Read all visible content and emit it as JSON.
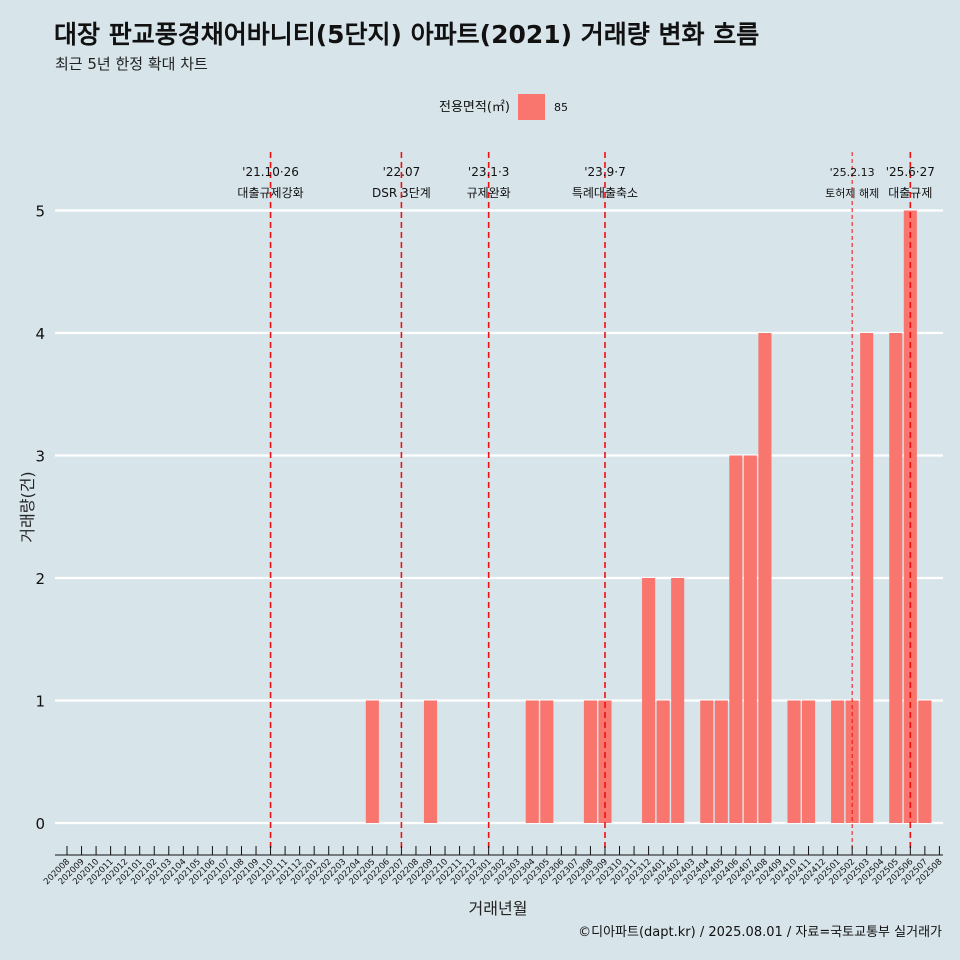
{
  "header": {
    "title": "대장 판교풍경채어바니티(5단지) 아파트(2021) 거래량 변화 흐름",
    "subtitle": "최근 5년 한정 확대 차트"
  },
  "legend": {
    "title": "전용면적(㎡)",
    "items": [
      {
        "label": "85",
        "color": "#f8766d"
      }
    ]
  },
  "caption": "©디아파트(dapt.kr) / 2025.08.01 / 자료=국토교통부 실거래가",
  "chart_data": {
    "type": "bar",
    "xlabel": "거래년월",
    "ylabel": "거래량(건)",
    "ylim": [
      0,
      5
    ],
    "y_ticks": [
      0,
      1,
      2,
      3,
      4,
      5
    ],
    "grid": true,
    "legend_position": "top",
    "bar_color": "#f8766d",
    "categories": [
      "202008",
      "202009",
      "202010",
      "202011",
      "202012",
      "202101",
      "202102",
      "202103",
      "202104",
      "202105",
      "202106",
      "202107",
      "202108",
      "202109",
      "202110",
      "202111",
      "202112",
      "202201",
      "202202",
      "202203",
      "202204",
      "202205",
      "202206",
      "202207",
      "202208",
      "202209",
      "202210",
      "202211",
      "202212",
      "202301",
      "202302",
      "202303",
      "202304",
      "202305",
      "202306",
      "202307",
      "202308",
      "202309",
      "202310",
      "202311",
      "202312",
      "202401",
      "202402",
      "202403",
      "202404",
      "202405",
      "202406",
      "202407",
      "202408",
      "202409",
      "202410",
      "202411",
      "202412",
      "202501",
      "202502",
      "202503",
      "202504",
      "202505",
      "202506",
      "202507",
      "202508"
    ],
    "series": [
      {
        "name": "85",
        "values": [
          0,
          0,
          0,
          0,
          0,
          0,
          0,
          0,
          0,
          0,
          0,
          0,
          0,
          0,
          0,
          0,
          0,
          0,
          0,
          0,
          0,
          1,
          0,
          0,
          0,
          1,
          0,
          0,
          0,
          0,
          0,
          0,
          1,
          1,
          0,
          0,
          1,
          1,
          0,
          0,
          2,
          1,
          2,
          0,
          1,
          1,
          3,
          3,
          4,
          0,
          1,
          1,
          0,
          1,
          1,
          4,
          0,
          4,
          5,
          1,
          0
        ]
      }
    ],
    "annotations": [
      {
        "month": "202110",
        "date": "'21.10·26",
        "label": "대출규제강화",
        "style": "major"
      },
      {
        "month": "202207",
        "date": "'22.07",
        "label": "DSR 3단계",
        "style": "major"
      },
      {
        "month": "202301",
        "date": "'23.1·3",
        "label": "규제완화",
        "style": "major"
      },
      {
        "month": "202309",
        "date": "'23.9·7",
        "label": "특례대출축소",
        "style": "major"
      },
      {
        "month": "202502",
        "date": "'25.2.13",
        "label": "토허제 해제",
        "style": "minor"
      },
      {
        "month": "202506",
        "date": "'25.6·27",
        "label": "대출규제",
        "style": "major"
      }
    ]
  }
}
